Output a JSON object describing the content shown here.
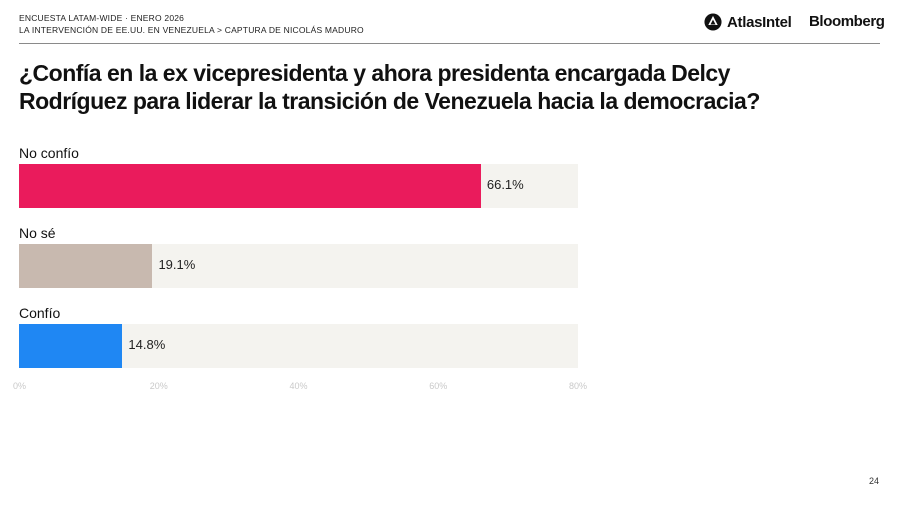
{
  "header": {
    "line1": "ENCUESTA LATAM-WIDE · ENERO 2026",
    "line2": "LA INTERVENCIÓN DE EE.UU. EN VENEZUELA > CAPTURA DE NICOLÁS MADURO",
    "brand_atlas": "AtlasIntel",
    "brand_bloomberg": "Bloomberg"
  },
  "page_number": "24",
  "colors": {
    "no_confio": "#ea1b5c",
    "no_se": "#c8b9af",
    "confio": "#1f87f3",
    "track": "#f4f3ef"
  },
  "chart_data": {
    "type": "bar",
    "orientation": "horizontal",
    "title": "¿Confía en la ex vicepresidenta y ahora presidenta encargada Delcy Rodríguez para liderar la transición de Venezuela hacia la democracia?",
    "categories": [
      "No confío",
      "No sé",
      "Confío"
    ],
    "values": [
      66.1,
      19.1,
      14.8
    ],
    "value_labels": [
      "66.1%",
      "19.1%",
      "14.8%"
    ],
    "unit": "%",
    "xlim": [
      0,
      80
    ],
    "ticks": [
      0,
      20,
      40,
      60,
      80
    ],
    "tick_labels": [
      "0%",
      "20%",
      "40%",
      "60%",
      "80%"
    ],
    "xlabel": "",
    "ylabel": "",
    "grid": false,
    "legend": "none"
  }
}
